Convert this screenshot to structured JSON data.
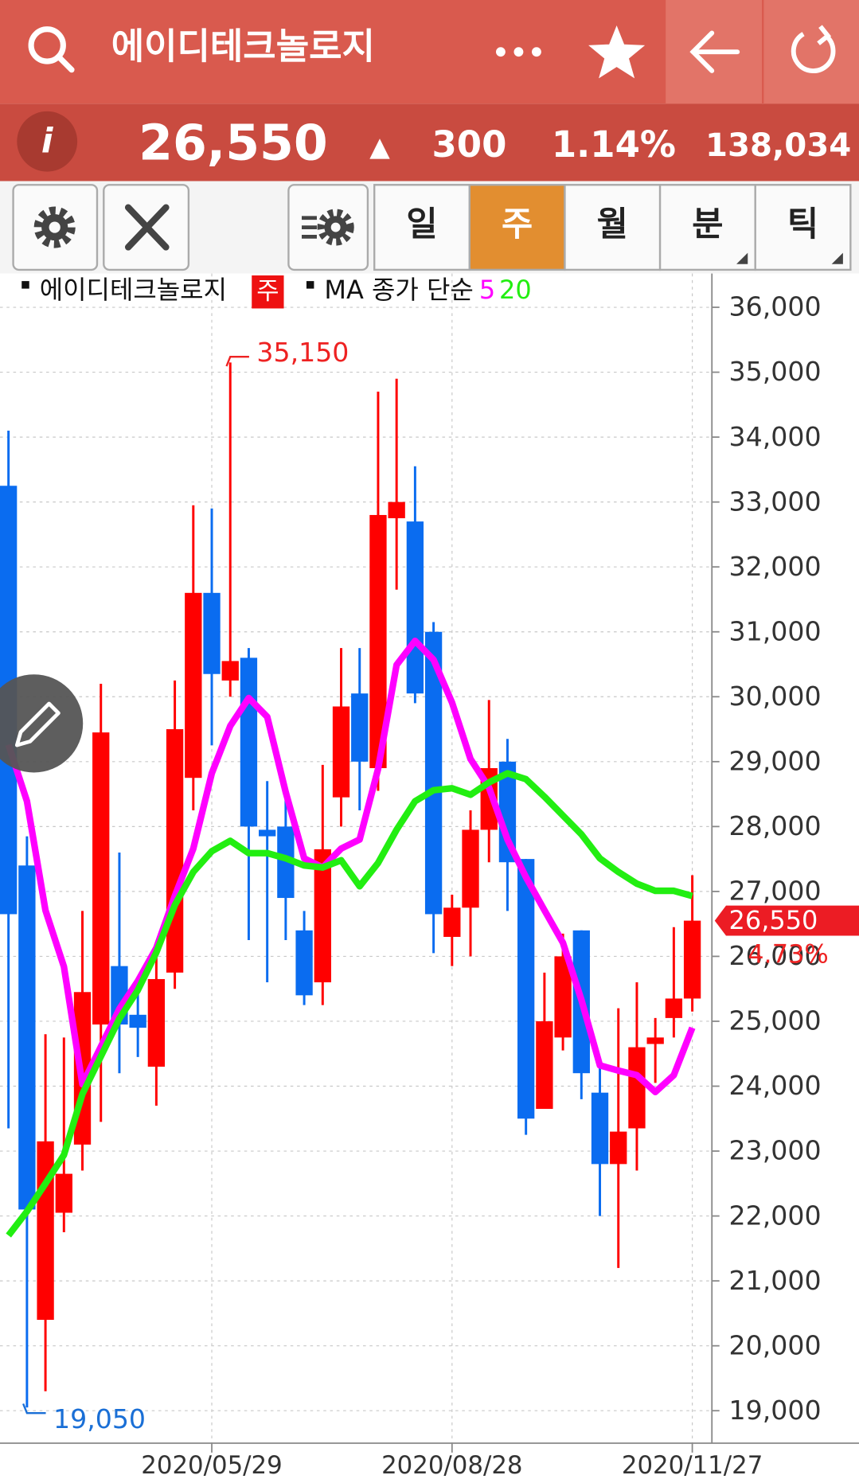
{
  "header": {
    "title": "에이디테크놀로지"
  },
  "quote": {
    "price": "26,550",
    "arrow": "▲",
    "change": "300",
    "change_pct": "1.14%",
    "volume": "138,034"
  },
  "tabs": [
    "일",
    "주",
    "월",
    "분",
    "틱"
  ],
  "active_tab": 1,
  "chart_data": {
    "type": "candlestick",
    "legend": {
      "name": "에이디테크놀로지",
      "period": "주",
      "ma_label": "MA 종가 단순"
    },
    "categories": [
      null,
      null,
      null,
      null,
      null,
      null,
      null,
      null,
      null,
      null,
      null,
      "2020/05/29",
      null,
      null,
      null,
      null,
      null,
      null,
      null,
      null,
      null,
      null,
      null,
      null,
      "2020/08/28",
      null,
      null,
      null,
      null,
      null,
      null,
      null,
      null,
      null,
      null,
      null,
      null,
      "2020/11/27"
    ],
    "open": [
      33250,
      27400,
      20400,
      22050,
      23100,
      24950,
      25850,
      25100,
      24300,
      25750,
      28750,
      31600,
      30250,
      30600,
      27950,
      28000,
      26400,
      25600,
      28450,
      30050,
      28900,
      32750,
      32700,
      31000,
      26300,
      26750,
      27950,
      29000,
      27500,
      23650,
      24750,
      26400,
      23900,
      22800,
      23350,
      24650,
      25050,
      25350
    ],
    "high": [
      34100,
      27850,
      24800,
      24750,
      26700,
      30200,
      27600,
      25600,
      26150,
      30250,
      32950,
      32900,
      35150,
      30750,
      28700,
      28550,
      26700,
      28950,
      30750,
      30750,
      34700,
      34900,
      33550,
      31150,
      26950,
      28250,
      29950,
      29350,
      27500,
      25750,
      26350,
      26400,
      24400,
      25200,
      25600,
      25050,
      26450,
      27250
    ],
    "low": [
      23350,
      19050,
      19300,
      21750,
      22700,
      23450,
      24200,
      24450,
      23700,
      25500,
      28250,
      29250,
      30000,
      26250,
      25600,
      26250,
      25250,
      25250,
      28000,
      28250,
      28550,
      31650,
      29900,
      26050,
      25850,
      26000,
      27450,
      26700,
      23250,
      23650,
      24550,
      23800,
      22000,
      21200,
      22700,
      24050,
      24750,
      25150
    ],
    "close": [
      26650,
      22100,
      23150,
      22650,
      25450,
      29450,
      24950,
      24900,
      25650,
      29500,
      31600,
      30350,
      30550,
      28000,
      27850,
      26900,
      25400,
      27650,
      29850,
      29000,
      32800,
      33000,
      30050,
      26650,
      26750,
      27950,
      28900,
      27450,
      23500,
      25000,
      26000,
      24200,
      22800,
      23300,
      24600,
      24750,
      25350,
      26550
    ],
    "up_color": "#ff0000",
    "down_color": "#0a6cf0",
    "series": [
      {
        "name": "5",
        "color": "#ff00ff",
        "values": [
          29260,
          28390,
          26710,
          25840,
          24030,
          24610,
          25190,
          25620,
          26130,
          26930,
          27660,
          28820,
          29550,
          29980,
          29690,
          28530,
          27510,
          27370,
          27660,
          27800,
          28890,
          30490,
          30860,
          30570,
          29910,
          29040,
          28600,
          27800,
          27220,
          26710,
          26210,
          25330,
          24320,
          24240,
          24170,
          23910,
          24170,
          24900
        ]
      },
      {
        "name": "20",
        "color": "#22ee11",
        "values": [
          21700,
          22070,
          22500,
          22940,
          23880,
          24460,
          25040,
          25480,
          26060,
          26790,
          27300,
          27620,
          27780,
          27590,
          27590,
          27510,
          27400,
          27370,
          27480,
          27080,
          27440,
          27950,
          28390,
          28560,
          28590,
          28490,
          28680,
          28820,
          28730,
          28460,
          28170,
          27880,
          27510,
          27300,
          27120,
          27010,
          27010,
          26930
        ]
      }
    ],
    "ylim": [
      18500,
      36520
    ],
    "yticks": [
      {
        "value": 19000,
        "label": "19,000"
      },
      {
        "value": 20000,
        "label": "20,000"
      },
      {
        "value": 21000,
        "label": "21,000"
      },
      {
        "value": 22000,
        "label": "22,000"
      },
      {
        "value": 23000,
        "label": "23,000"
      },
      {
        "value": 24000,
        "label": "24,000"
      },
      {
        "value": 25000,
        "label": "25,000"
      },
      {
        "value": 26000,
        "label": "26,000"
      },
      {
        "value": 27000,
        "label": "27,000"
      },
      {
        "value": 28000,
        "label": "28,000"
      },
      {
        "value": 29000,
        "label": "29,000"
      },
      {
        "value": 30000,
        "label": "30,000"
      },
      {
        "value": 31000,
        "label": "31,000"
      },
      {
        "value": 32000,
        "label": "32,000"
      },
      {
        "value": 33000,
        "label": "33,000"
      },
      {
        "value": 34000,
        "label": "34,000"
      },
      {
        "value": 35000,
        "label": "35,000"
      },
      {
        "value": 36000,
        "label": "36,000"
      }
    ],
    "grid": true,
    "high_label": {
      "value": 35150,
      "label": "35,150"
    },
    "low_label": {
      "value": 19050,
      "label": "19,050"
    },
    "last_label": {
      "value": 26550,
      "label": "26,550"
    },
    "last_change": "4.73%"
  }
}
